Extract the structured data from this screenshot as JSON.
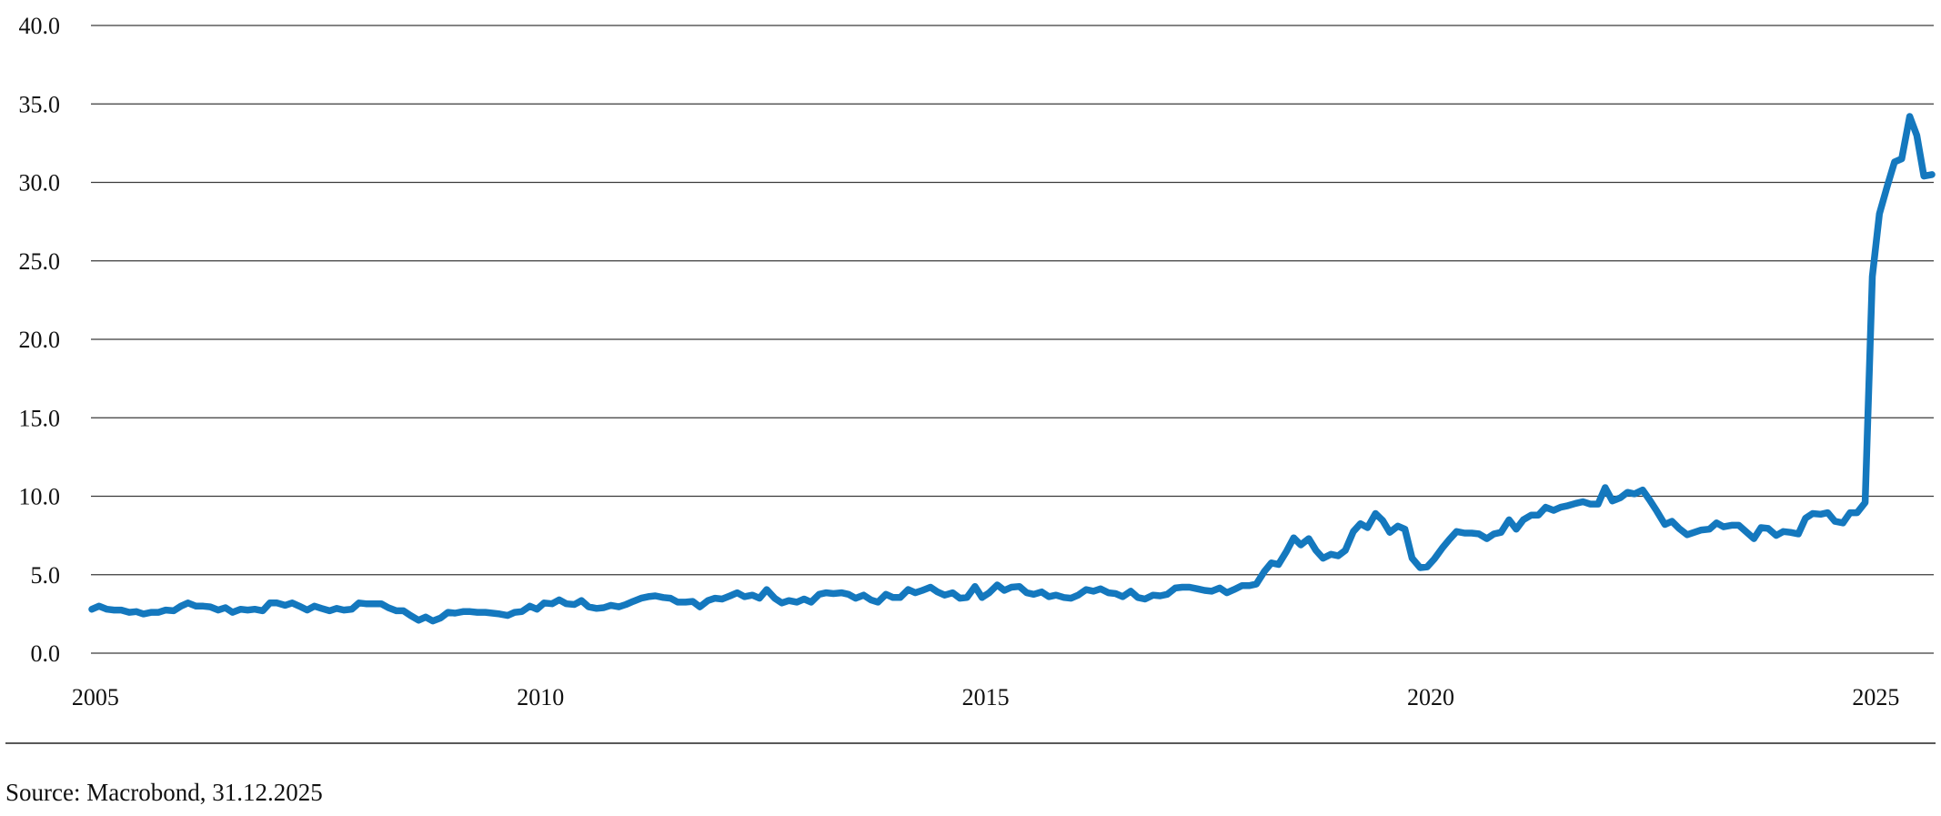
{
  "chart_data": {
    "type": "line",
    "title": "",
    "xlabel": "",
    "ylabel": "",
    "xlim": [
      2004.95,
      2025.65
    ],
    "ylim": [
      0,
      40
    ],
    "x_ticks": [
      "2005",
      "2010",
      "2015",
      "2020",
      "2025"
    ],
    "y_ticks": [
      "0.0",
      "5.0",
      "10.0",
      "15.0",
      "20.0",
      "25.0",
      "30.0",
      "35.0",
      "40.0"
    ],
    "grid": "horizontal",
    "legend": "none",
    "series": [
      {
        "color": "#1478be",
        "x": [
          2004.96,
          2005.04,
          2005.13,
          2005.21,
          2005.29,
          2005.38,
          2005.46,
          2005.54,
          2005.63,
          2005.71,
          2005.79,
          2005.88,
          2005.96,
          2006.04,
          2006.13,
          2006.21,
          2006.29,
          2006.38,
          2006.46,
          2006.54,
          2006.63,
          2006.71,
          2006.79,
          2006.88,
          2006.96,
          2007.04,
          2007.13,
          2007.21,
          2007.29,
          2007.38,
          2007.46,
          2007.54,
          2007.63,
          2007.71,
          2007.79,
          2007.88,
          2007.96,
          2008.04,
          2008.13,
          2008.21,
          2008.29,
          2008.38,
          2008.46,
          2008.54,
          2008.63,
          2008.71,
          2008.79,
          2008.88,
          2008.96,
          2009.04,
          2009.13,
          2009.21,
          2009.29,
          2009.38,
          2009.46,
          2009.54,
          2009.63,
          2009.71,
          2009.79,
          2009.88,
          2009.96,
          2010.04,
          2010.13,
          2010.21,
          2010.29,
          2010.38,
          2010.46,
          2010.54,
          2010.63,
          2010.71,
          2010.79,
          2010.88,
          2010.96,
          2011.04,
          2011.13,
          2011.21,
          2011.29,
          2011.38,
          2011.46,
          2011.54,
          2011.63,
          2011.71,
          2011.79,
          2011.88,
          2011.96,
          2012.04,
          2012.13,
          2012.21,
          2012.29,
          2012.38,
          2012.46,
          2012.54,
          2012.63,
          2012.71,
          2012.79,
          2012.88,
          2012.96,
          2013.04,
          2013.13,
          2013.21,
          2013.29,
          2013.38,
          2013.46,
          2013.54,
          2013.63,
          2013.71,
          2013.79,
          2013.88,
          2013.96,
          2014.04,
          2014.13,
          2014.21,
          2014.29,
          2014.38,
          2014.46,
          2014.54,
          2014.63,
          2014.71,
          2014.79,
          2014.88,
          2014.96,
          2015.04,
          2015.13,
          2015.21,
          2015.29,
          2015.38,
          2015.46,
          2015.54,
          2015.63,
          2015.71,
          2015.79,
          2015.88,
          2015.96,
          2016.04,
          2016.13,
          2016.21,
          2016.29,
          2016.38,
          2016.46,
          2016.54,
          2016.63,
          2016.71,
          2016.79,
          2016.88,
          2016.96,
          2017.04,
          2017.13,
          2017.21,
          2017.29,
          2017.38,
          2017.46,
          2017.54,
          2017.63,
          2017.71,
          2017.79,
          2017.88,
          2017.96,
          2018.04,
          2018.13,
          2018.21,
          2018.29,
          2018.38,
          2018.46,
          2018.54,
          2018.63,
          2018.71,
          2018.79,
          2018.88,
          2018.96,
          2019.04,
          2019.13,
          2019.21,
          2019.29,
          2019.38,
          2019.46,
          2019.54,
          2019.63,
          2019.71,
          2019.79,
          2019.88,
          2019.96,
          2020.04,
          2020.13,
          2020.21,
          2020.29,
          2020.38,
          2020.46,
          2020.54,
          2020.63,
          2020.71,
          2020.79,
          2020.88,
          2020.96,
          2021.04,
          2021.13,
          2021.21,
          2021.29,
          2021.38,
          2021.46,
          2021.54,
          2021.63,
          2021.71,
          2021.79,
          2021.88,
          2021.96,
          2022.04,
          2022.13,
          2022.21,
          2022.29,
          2022.38,
          2022.46,
          2022.54,
          2022.63,
          2022.71,
          2022.79,
          2022.88,
          2022.96,
          2023.04,
          2023.13,
          2023.21,
          2023.29,
          2023.38,
          2023.46,
          2023.54,
          2023.63,
          2023.71,
          2023.79,
          2023.88,
          2023.96,
          2024.04,
          2024.13,
          2024.21,
          2024.29,
          2024.38,
          2024.46,
          2024.54,
          2024.63,
          2024.71,
          2024.79,
          2024.88,
          2024.96,
          2025.04,
          2025.13,
          2025.21,
          2025.29,
          2025.38,
          2025.46,
          2025.54,
          2025.63
        ],
        "y": [
          2.8,
          3.0,
          2.8,
          2.75,
          2.75,
          2.6,
          2.65,
          2.5,
          2.6,
          2.6,
          2.75,
          2.7,
          3.0,
          3.2,
          3.0,
          3.0,
          2.95,
          2.75,
          2.9,
          2.6,
          2.8,
          2.75,
          2.8,
          2.7,
          3.2,
          3.2,
          3.05,
          3.2,
          3.0,
          2.75,
          3.0,
          2.85,
          2.7,
          2.85,
          2.75,
          2.8,
          3.2,
          3.15,
          3.15,
          3.15,
          2.9,
          2.7,
          2.7,
          2.4,
          2.1,
          2.3,
          2.05,
          2.25,
          2.6,
          2.55,
          2.65,
          2.65,
          2.6,
          2.6,
          2.55,
          2.5,
          2.4,
          2.6,
          2.65,
          3.0,
          2.8,
          3.2,
          3.15,
          3.4,
          3.15,
          3.1,
          3.35,
          2.95,
          2.85,
          2.9,
          3.05,
          2.95,
          3.1,
          3.3,
          3.5,
          3.6,
          3.65,
          3.55,
          3.5,
          3.25,
          3.25,
          3.3,
          2.95,
          3.35,
          3.5,
          3.45,
          3.65,
          3.85,
          3.6,
          3.7,
          3.5,
          4.05,
          3.5,
          3.2,
          3.35,
          3.25,
          3.45,
          3.25,
          3.75,
          3.85,
          3.8,
          3.85,
          3.75,
          3.5,
          3.7,
          3.4,
          3.25,
          3.75,
          3.55,
          3.55,
          4.05,
          3.85,
          4.0,
          4.2,
          3.9,
          3.7,
          3.85,
          3.5,
          3.55,
          4.25,
          3.55,
          3.85,
          4.35,
          4.0,
          4.2,
          4.25,
          3.85,
          3.75,
          3.9,
          3.6,
          3.7,
          3.55,
          3.5,
          3.7,
          4.05,
          3.95,
          4.1,
          3.85,
          3.8,
          3.6,
          3.95,
          3.55,
          3.45,
          3.7,
          3.65,
          3.75,
          4.15,
          4.2,
          4.2,
          4.1,
          4.0,
          3.95,
          4.15,
          3.85,
          4.05,
          4.3,
          4.3,
          4.4,
          5.2,
          5.75,
          5.65,
          6.5,
          7.35,
          6.9,
          7.3,
          6.55,
          6.05,
          6.3,
          6.2,
          6.55,
          7.75,
          8.25,
          8.0,
          8.9,
          8.45,
          7.7,
          8.1,
          7.9,
          6.05,
          5.45,
          5.5,
          6.0,
          6.7,
          7.25,
          7.75,
          7.65,
          7.65,
          7.6,
          7.3,
          7.6,
          7.7,
          8.5,
          7.9,
          8.5,
          8.8,
          8.8,
          9.3,
          9.1,
          9.3,
          9.4,
          9.55,
          9.65,
          9.5,
          9.5,
          10.55,
          9.7,
          9.9,
          10.25,
          10.15,
          10.4,
          9.75,
          9.05,
          8.2,
          8.4,
          7.95,
          7.55,
          7.7,
          7.85,
          7.9,
          8.3,
          8.05,
          8.15,
          8.15,
          7.75,
          7.3,
          8.0,
          7.95,
          7.5,
          7.75,
          7.7,
          7.6,
          8.6,
          8.9,
          8.85,
          8.95,
          8.4,
          8.3,
          8.95,
          8.95,
          9.6,
          24.0,
          28.0,
          29.8,
          31.3,
          31.5,
          34.2,
          33.0,
          30.4,
          30.5
        ]
      }
    ]
  },
  "footer": {
    "source": "Source: Macrobond, 31.12.2025"
  }
}
